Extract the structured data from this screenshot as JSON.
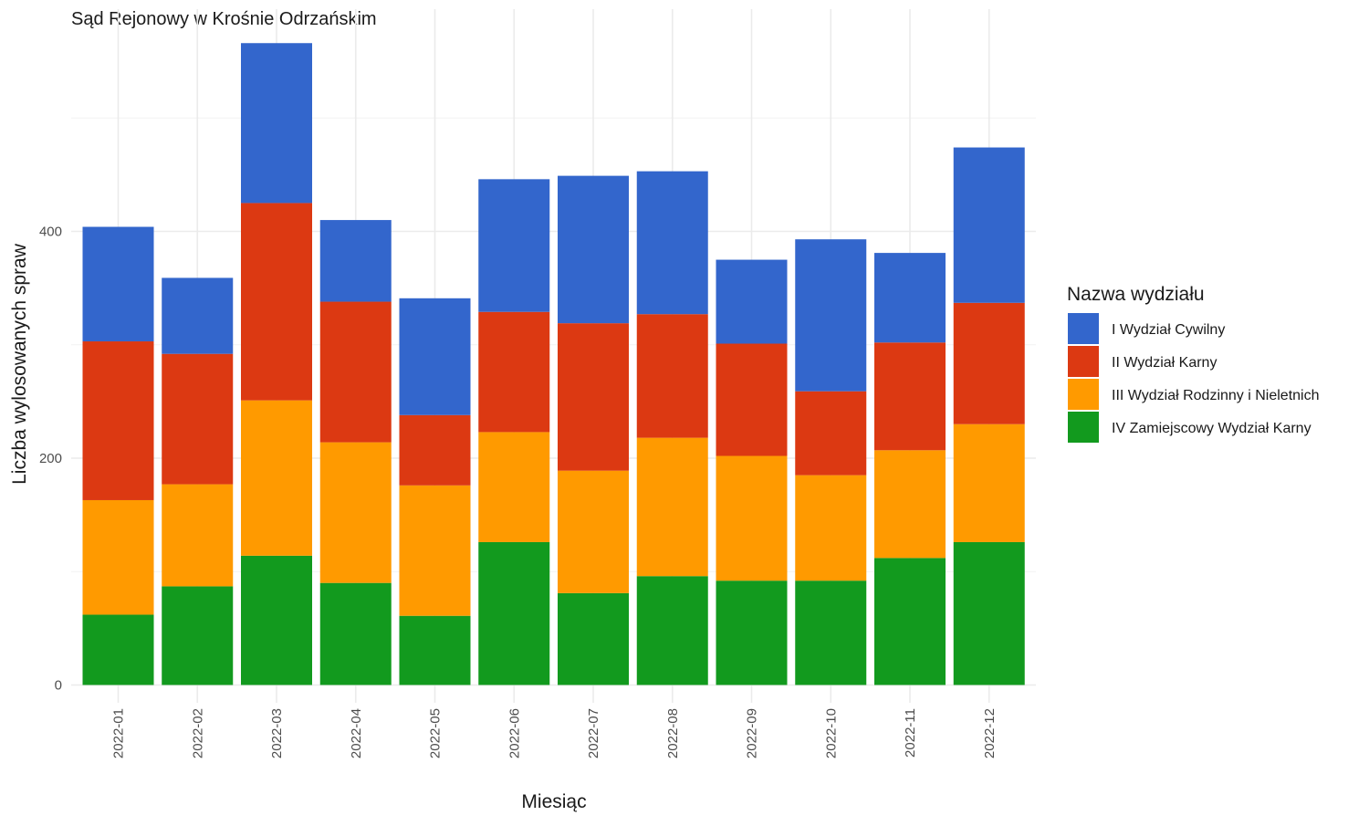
{
  "chart_data": {
    "type": "bar",
    "stacked": true,
    "title": "Sąd Rejonowy w Krośnie Odrzańskim",
    "xlabel": "Miesiąc",
    "ylabel": "Liczba wylosowanych spraw",
    "ylim": [
      0,
      590
    ],
    "y_ticks": [
      0,
      200,
      400
    ],
    "grid": true,
    "legend_title": "Nazwa wydziału",
    "legend_position": "right",
    "categories": [
      "2022-01",
      "2022-02",
      "2022-03",
      "2022-04",
      "2022-05",
      "2022-06",
      "2022-07",
      "2022-08",
      "2022-09",
      "2022-10",
      "2022-11",
      "2022-12"
    ],
    "series": [
      {
        "name": "IV Zamiejscowy Wydział Karny",
        "color": "#129a1e",
        "values": [
          62,
          87,
          114,
          90,
          61,
          126,
          81,
          96,
          92,
          92,
          112,
          126
        ]
      },
      {
        "name": "III Wydział Rodzinny i Nieletnich",
        "color": "#ff9a00",
        "values": [
          101,
          90,
          137,
          124,
          115,
          97,
          108,
          122,
          110,
          93,
          95,
          104
        ]
      },
      {
        "name": "II Wydział Karny",
        "color": "#dc3912",
        "values": [
          140,
          115,
          174,
          124,
          62,
          106,
          130,
          109,
          99,
          74,
          95,
          107
        ]
      },
      {
        "name": "I Wydział Cywilny",
        "color": "#3366cc",
        "values": [
          101,
          67,
          141,
          72,
          103,
          117,
          130,
          126,
          74,
          134,
          79,
          137
        ]
      }
    ]
  }
}
